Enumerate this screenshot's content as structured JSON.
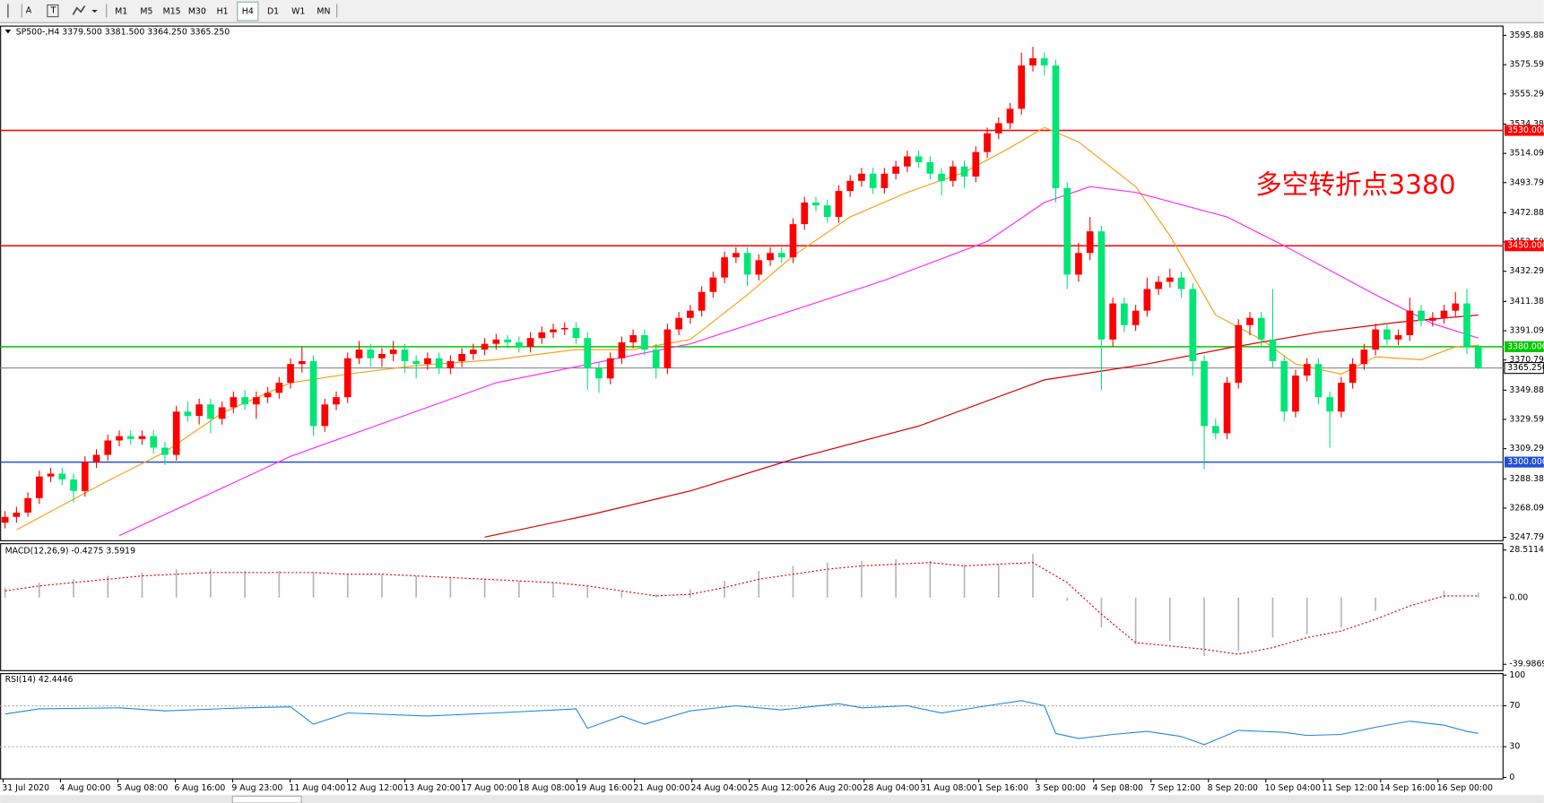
{
  "toolbar": {
    "tools": [
      "A",
      "T"
    ],
    "timeframes": [
      "M1",
      "M5",
      "M15",
      "M30",
      "H1",
      "H4",
      "D1",
      "W1",
      "MN"
    ]
  },
  "chart": {
    "type": "candlestick",
    "symbol_info": "SP500-,H4 3379.500 3381.500 3364.250 3365.250",
    "annotation": "多空转折点3380",
    "up_color": "#ff0000",
    "down_color": "#00e676",
    "ylim": [
      3245.8,
      3602
    ],
    "yticks": [
      3595.885,
      {
        "value": 3575.59,
        "label": "3575.590"
      },
      3555.295,
      3534.385,
      {
        "value": 3514.09,
        "label": "3514.090"
      },
      3493.795,
      3472.885,
      {
        "value": 3452.59,
        "label": "3452.590"
      },
      3432.295,
      3411.385,
      {
        "value": 3391.09,
        "label": "3391.090"
      },
      3370.795,
      3349.885,
      {
        "value": 3329.59,
        "label": "3329.590"
      },
      3309.295,
      3288.385,
      {
        "value": 3268.09,
        "label": "3268.090"
      },
      3247.795
    ],
    "levels": [
      {
        "price": {
          "value": 3530,
          "label": "3530.000"
        },
        "color": "#ff0000"
      },
      {
        "price": {
          "value": 3450,
          "label": "3450.000"
        },
        "color": "#ff0000"
      },
      {
        "price": {
          "value": 3380,
          "label": "3380.000"
        },
        "color": "#00c800"
      },
      {
        "price": {
          "value": 3300,
          "label": "3300.000"
        },
        "color": "#1f4fd6"
      }
    ],
    "current_price": {
      "value": 3365.25,
      "label": "3365.250"
    },
    "dates": [
      "31 Jul 2020",
      "4 Aug 00:00",
      "5 Aug 08:00",
      "6 Aug 16:00",
      "9 Aug 23:00",
      "11 Aug 04:00",
      "12 Aug 12:00",
      "13 Aug 20:00",
      "17 Aug 00:00",
      "18 Aug 08:00",
      "19 Aug 16:00",
      "21 Aug 00:00",
      "24 Aug 04:00",
      "25 Aug 12:00",
      "26 Aug 20:00",
      "28 Aug 04:00",
      "31 Aug 08:00",
      "1 Sep 16:00",
      "3 Sep 00:00",
      "4 Sep 08:00",
      "7 Sep 12:00",
      "8 Sep 20:00",
      "10 Sep 04:00",
      "11 Sep 12:00",
      "14 Sep 16:00",
      "16 Sep 00:00"
    ],
    "candles": [
      [
        3258,
        3266,
        3254,
        3262
      ],
      [
        3262,
        3269,
        3258,
        3265
      ],
      [
        3265,
        3279,
        3262,
        3275
      ],
      [
        3275,
        3294,
        3271,
        3290
      ],
      [
        3290,
        3296,
        3286,
        3292
      ],
      [
        3292,
        3296,
        3284,
        3288
      ],
      [
        3288,
        3292,
        3272,
        3280
      ],
      [
        3280,
        3304,
        3276,
        3300
      ],
      [
        3300,
        3309,
        3296,
        3305
      ],
      [
        3305,
        3319,
        3301,
        3315
      ],
      [
        3315,
        3322,
        3311,
        3318
      ],
      [
        3318,
        3322,
        3312,
        3316
      ],
      [
        3316,
        3322,
        3312,
        3318
      ],
      [
        3318,
        3322,
        3306,
        3310
      ],
      [
        3310,
        3314,
        3298,
        3305
      ],
      [
        3305,
        3339,
        3301,
        3335
      ],
      [
        3335,
        3342,
        3328,
        3332
      ],
      [
        3332,
        3344,
        3326,
        3340
      ],
      [
        3340,
        3344,
        3320,
        3330
      ],
      [
        3330,
        3342,
        3326,
        3338
      ],
      [
        3338,
        3349,
        3334,
        3345
      ],
      [
        3345,
        3350,
        3336,
        3340
      ],
      [
        3340,
        3349,
        3330,
        3345
      ],
      [
        3345,
        3352,
        3341,
        3348
      ],
      [
        3348,
        3359,
        3344,
        3355
      ],
      [
        3355,
        3372,
        3351,
        3368
      ],
      [
        3368,
        3380,
        3362,
        3370
      ],
      [
        3370,
        3374,
        3318,
        3325
      ],
      [
        3325,
        3344,
        3321,
        3340
      ],
      [
        3340,
        3349,
        3336,
        3345
      ],
      [
        3345,
        3376,
        3341,
        3372
      ],
      [
        3372,
        3384,
        3368,
        3378
      ],
      [
        3378,
        3382,
        3366,
        3372
      ],
      [
        3372,
        3379,
        3366,
        3375
      ],
      [
        3375,
        3384,
        3370,
        3378
      ],
      [
        3378,
        3382,
        3362,
        3370
      ],
      [
        3370,
        3374,
        3358,
        3368
      ],
      [
        3368,
        3376,
        3364,
        3372
      ],
      [
        3372,
        3376,
        3361,
        3365
      ],
      [
        3365,
        3374,
        3361,
        3370
      ],
      [
        3370,
        3379,
        3366,
        3375
      ],
      [
        3375,
        3382,
        3371,
        3378
      ],
      [
        3378,
        3386,
        3374,
        3382
      ],
      [
        3382,
        3389,
        3378,
        3385
      ],
      [
        3385,
        3388,
        3379,
        3383
      ],
      [
        3383,
        3387,
        3376,
        3380
      ],
      [
        3380,
        3390,
        3376,
        3386
      ],
      [
        3386,
        3394,
        3382,
        3390
      ],
      [
        3390,
        3396,
        3386,
        3392
      ],
      [
        3392,
        3397,
        3388,
        3393
      ],
      [
        3393,
        3397,
        3382,
        3386
      ],
      [
        3386,
        3390,
        3350,
        3365
      ],
      [
        3365,
        3369,
        3348,
        3358
      ],
      [
        3358,
        3376,
        3354,
        3372
      ],
      [
        3372,
        3387,
        3368,
        3383
      ],
      [
        3383,
        3392,
        3379,
        3388
      ],
      [
        3388,
        3392,
        3374,
        3378
      ],
      [
        3378,
        3382,
        3358,
        3365
      ],
      [
        3365,
        3396,
        3361,
        3392
      ],
      [
        3392,
        3404,
        3388,
        3400
      ],
      [
        3400,
        3409,
        3396,
        3405
      ],
      [
        3405,
        3422,
        3401,
        3418
      ],
      [
        3418,
        3432,
        3414,
        3428
      ],
      [
        3428,
        3446,
        3424,
        3442
      ],
      [
        3442,
        3449,
        3438,
        3445
      ],
      [
        3445,
        3449,
        3422,
        3430
      ],
      [
        3430,
        3444,
        3426,
        3440
      ],
      [
        3440,
        3449,
        3436,
        3445
      ],
      [
        3445,
        3449,
        3438,
        3442
      ],
      [
        3442,
        3469,
        3438,
        3465
      ],
      [
        3465,
        3484,
        3461,
        3480
      ],
      [
        3480,
        3484,
        3474,
        3478
      ],
      [
        3478,
        3482,
        3466,
        3470
      ],
      [
        3470,
        3492,
        3466,
        3488
      ],
      [
        3488,
        3499,
        3484,
        3495
      ],
      [
        3495,
        3504,
        3491,
        3500
      ],
      [
        3500,
        3504,
        3486,
        3490
      ],
      [
        3490,
        3504,
        3486,
        3500
      ],
      [
        3500,
        3509,
        3496,
        3505
      ],
      [
        3505,
        3516,
        3501,
        3512
      ],
      [
        3512,
        3516,
        3504,
        3508
      ],
      [
        3508,
        3512,
        3496,
        3500
      ],
      [
        3500,
        3504,
        3485,
        3495
      ],
      [
        3495,
        3509,
        3491,
        3505
      ],
      [
        3505,
        3509,
        3490,
        3498
      ],
      [
        3498,
        3519,
        3494,
        3515
      ],
      [
        3515,
        3532,
        3511,
        3528
      ],
      [
        3528,
        3539,
        3524,
        3535
      ],
      [
        3535,
        3549,
        3531,
        3545
      ],
      [
        3545,
        3584,
        3541,
        3575
      ],
      [
        3575,
        3588,
        3571,
        3580
      ],
      [
        3580,
        3584,
        3568,
        3575
      ],
      [
        3575,
        3579,
        3480,
        3490
      ],
      [
        3490,
        3494,
        3420,
        3430
      ],
      [
        3430,
        3452,
        3425,
        3445
      ],
      [
        3445,
        3470,
        3440,
        3460
      ],
      [
        3460,
        3464,
        3350,
        3385
      ],
      [
        3385,
        3414,
        3380,
        3410
      ],
      [
        3410,
        3414,
        3390,
        3395
      ],
      [
        3395,
        3409,
        3391,
        3405
      ],
      [
        3405,
        3428,
        3401,
        3420
      ],
      [
        3420,
        3429,
        3416,
        3425
      ],
      [
        3425,
        3434,
        3421,
        3428
      ],
      [
        3428,
        3432,
        3414,
        3420
      ],
      [
        3420,
        3424,
        3360,
        3370
      ],
      [
        3370,
        3374,
        3295,
        3325
      ],
      [
        3325,
        3330,
        3316,
        3320
      ],
      [
        3320,
        3359,
        3316,
        3355
      ],
      [
        3355,
        3399,
        3351,
        3395
      ],
      [
        3395,
        3404,
        3388,
        3400
      ],
      [
        3400,
        3404,
        3380,
        3385
      ],
      [
        3385,
        3420,
        3365,
        3370
      ],
      [
        3370,
        3374,
        3328,
        3335
      ],
      [
        3335,
        3364,
        3331,
        3360
      ],
      [
        3360,
        3372,
        3356,
        3368
      ],
      [
        3368,
        3372,
        3340,
        3345
      ],
      [
        3345,
        3349,
        3310,
        3335
      ],
      [
        3335,
        3359,
        3331,
        3355
      ],
      [
        3355,
        3372,
        3351,
        3368
      ],
      [
        3368,
        3382,
        3364,
        3378
      ],
      [
        3378,
        3396,
        3374,
        3392
      ],
      [
        3392,
        3396,
        3381,
        3385
      ],
      [
        3385,
        3392,
        3381,
        3388
      ],
      [
        3388,
        3414,
        3384,
        3405
      ],
      [
        3405,
        3409,
        3394,
        3398
      ],
      [
        3398,
        3404,
        3394,
        3400
      ],
      [
        3400,
        3409,
        3396,
        3405
      ],
      [
        3405,
        3418,
        3401,
        3410
      ],
      [
        3410,
        3420,
        3375,
        3379.5
      ],
      [
        3379.5,
        3381.5,
        3364.25,
        3365.25
      ]
    ],
    "moving_averages": [
      {
        "color": "#f5a31a",
        "x": [
          1,
          5,
          9,
          14,
          19,
          25,
          30,
          36,
          43,
          50,
          55,
          60,
          65,
          69,
          74,
          79,
          84,
          88,
          91,
          94,
          99,
          102,
          106,
          110,
          113,
          117,
          120,
          124,
          127,
          129
        ],
        "values": [
          3253,
          3270,
          3287,
          3307,
          3334,
          3355,
          3361,
          3367,
          3371,
          3378,
          3378,
          3385,
          3416,
          3443,
          3470,
          3487,
          3501,
          3518,
          3532,
          3522,
          3491,
          3457,
          3402,
          3385,
          3368,
          3361,
          3373,
          3371,
          3380,
          3381
        ]
      },
      {
        "color": "#ff30ff",
        "x": [
          10,
          25,
          43,
          60,
          77,
          86,
          91,
          95,
          99,
          107,
          112,
          120,
          125,
          129
        ],
        "values": [
          3249,
          3304,
          3355,
          3382,
          3426,
          3453,
          3480,
          3491,
          3487,
          3470,
          3450,
          3416,
          3396,
          3386
        ]
      },
      {
        "color": "#e00000",
        "x": [
          42,
          51,
          60,
          69,
          80,
          91,
          100,
          107,
          115,
          122,
          129
        ],
        "values": [
          3248,
          3263,
          3280,
          3302,
          3325,
          3357,
          3368,
          3379,
          3390,
          3397,
          3402
        ]
      }
    ]
  },
  "macd": {
    "label": "MACD(12,26,9) -0.4275 3.5919",
    "ylim": [
      -43.5,
      32
    ],
    "yticks": [
      28.5114,
      {
        "value": 0,
        "label": "0.00"
      },
      -39.9869
    ],
    "x": [
      0,
      3,
      6,
      9,
      12,
      15,
      18,
      21,
      24,
      27,
      30,
      33,
      36,
      39,
      42,
      45,
      48,
      51,
      54,
      57,
      60,
      63,
      66,
      69,
      72,
      75,
      78,
      81,
      84,
      87,
      90,
      93,
      96,
      99,
      102,
      105,
      108,
      111,
      114,
      117,
      120,
      123,
      126,
      129
    ],
    "histogram": [
      6,
      9,
      11,
      13,
      15,
      17,
      17,
      16,
      16,
      15,
      14,
      14,
      13,
      12,
      11,
      10,
      9,
      7,
      4,
      2,
      5,
      10,
      16,
      19,
      21,
      22,
      23,
      22,
      20,
      20,
      26,
      -2,
      -18,
      -28,
      -26,
      -35,
      -32,
      -24,
      -22,
      -18,
      -8,
      0,
      4,
      3
    ],
    "signal": [
      4,
      7,
      9,
      11,
      13,
      14,
      15,
      15,
      15,
      15,
      14,
      14,
      13,
      12,
      11,
      10,
      9,
      7,
      4,
      1,
      2,
      6,
      11,
      14,
      17,
      19,
      20,
      21,
      19,
      20,
      21,
      9,
      -10,
      -27,
      -29,
      -31,
      -34,
      -30,
      -24,
      -20,
      -13,
      -5,
      1,
      1
    ]
  },
  "rsi": {
    "label": "RSI(14) 42.4446",
    "ylim": [
      0,
      100
    ],
    "yticks": [
      100,
      70,
      30,
      0
    ],
    "levels": [
      70,
      30
    ],
    "color": "#1e88e5",
    "x": [
      0,
      3,
      10,
      14,
      21,
      25,
      27,
      30,
      37,
      43,
      50,
      51,
      54,
      56,
      60,
      64,
      68,
      73,
      75,
      79,
      82,
      86,
      89,
      91,
      92,
      94,
      97,
      100,
      103,
      105,
      108,
      112,
      114,
      117,
      120,
      123,
      126,
      128,
      129
    ],
    "values": [
      62,
      67,
      68,
      65,
      68,
      69,
      52,
      63,
      60,
      63,
      67,
      48,
      60,
      52,
      65,
      70,
      66,
      72,
      68,
      70,
      63,
      70,
      75,
      70,
      43,
      38,
      42,
      45,
      40,
      32,
      46,
      44,
      41,
      42,
      49,
      55,
      51,
      45,
      43
    ]
  }
}
